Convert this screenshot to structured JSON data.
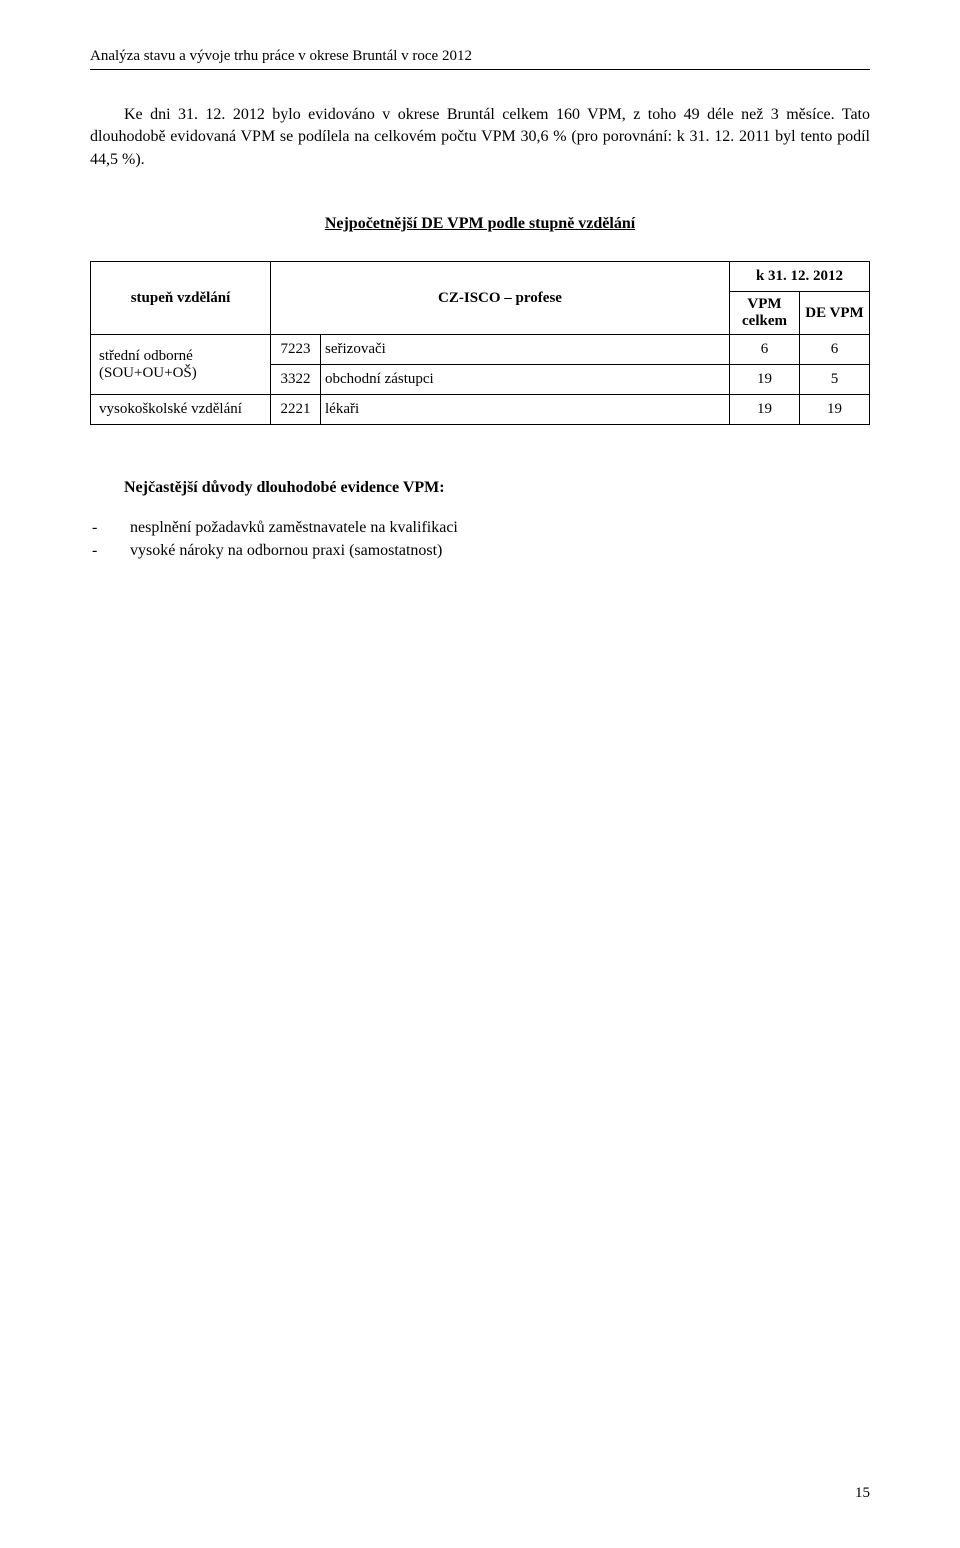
{
  "header": {
    "text": "Analýza stavu a vývoje trhu práce v okrese Bruntál v roce 2012"
  },
  "paragraph": {
    "text": "Ke dni 31. 12. 2012 bylo evidováno v okrese Bruntál celkem 160 VPM, z toho 49 déle než 3 měsíce. Tato dlouhodobě evidovaná VPM se podílela na celkovém počtu VPM 30,6 % (pro porovnání: k 31. 12. 2011 byl tento podíl 44,5 %)."
  },
  "section_title": "Nejpočetnější DE VPM podle stupně vzdělání",
  "table": {
    "col_stupen": "stupeň vzdělání",
    "col_profese": "CZ-ISCO – profese",
    "col_date": "k 31. 12. 2012",
    "col_vpm_celkem_l1": "VPM",
    "col_vpm_celkem_l2": "celkem",
    "col_de_vpm": "DE VPM",
    "rows": [
      {
        "stupen_l1": "střední odborné",
        "stupen_l2": "(SOU+OU+OŠ)",
        "items": [
          {
            "code": "7223",
            "prof": "seřizovači",
            "vpm": "6",
            "de": "6"
          },
          {
            "code": "3322",
            "prof": "obchodní zástupci",
            "vpm": "19",
            "de": "5"
          }
        ]
      },
      {
        "stupen": "vysokoškolské vzdělání",
        "items": [
          {
            "code": "2221",
            "prof": "lékaři",
            "vpm": "19",
            "de": "19"
          }
        ]
      }
    ]
  },
  "reasons_title": "Nejčastější důvody dlouhodobé evidence VPM:",
  "reasons": [
    "nesplnění požadavků zaměstnavatele na kvalifikaci",
    "vysoké nároky na odbornou praxi (samostatnost)"
  ],
  "page_number": "15",
  "colors": {
    "text": "#000000",
    "bg": "#ffffff",
    "border": "#000000"
  }
}
